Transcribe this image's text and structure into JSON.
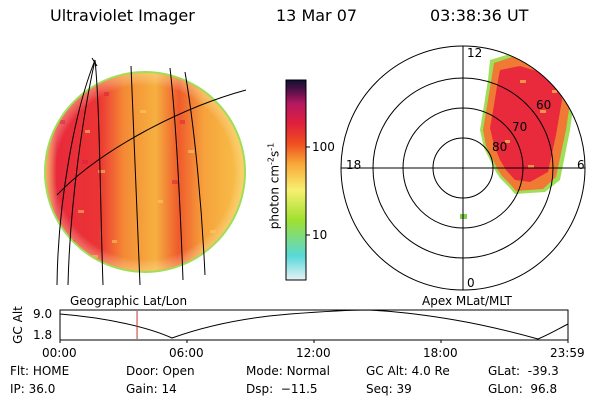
{
  "header": {
    "instrument": "Ultraviolet Imager",
    "date": "13 Mar 07",
    "time": "03:38:36 UT"
  },
  "colors": {
    "disk_base": "#f6b040",
    "disk_edge": "#9ede58",
    "aurora_high": "#e8243a",
    "aurora_mid": "#f06a2c",
    "aurora_low": "#fbd36c",
    "overlay": "#000000",
    "time_marker": "#c0392b"
  },
  "left_panel": {
    "label": "Geographic Lat/Lon"
  },
  "colorbar": {
    "unit_main": "photon cm",
    "unit_sup1": "-2",
    "unit_s": "s",
    "unit_sup2": "-1",
    "ticks": [
      {
        "label": "100",
        "value": 100
      },
      {
        "label": "10",
        "value": 10
      }
    ],
    "stops": [
      "#e8f2f6",
      "#58d8d8",
      "#a0e030",
      "#f8f070",
      "#f8a838",
      "#f05020",
      "#e0203c",
      "#b81860",
      "#501048",
      "#101030"
    ]
  },
  "right_panel": {
    "label": "Apex MLat/MLT",
    "mlt_labels": {
      "top": "12",
      "left": "18",
      "right": "6",
      "bottom": "0"
    },
    "lat_labels": [
      "60",
      "70",
      "80"
    ]
  },
  "orbit": {
    "axis_label": "GC Alt",
    "y_ticks": [
      "9.0",
      "1.8"
    ],
    "x_ticks": [
      "00:00",
      "06:00",
      "12:00",
      "18:00",
      "23:59"
    ],
    "marker_hours": 3.64
  },
  "status": [
    [
      {
        "key": "Flt:",
        "val": "HOME"
      },
      {
        "key": "Door:",
        "val": "Open"
      },
      {
        "key": "Mode:",
        "val": "Normal"
      },
      {
        "key": "GC Alt:",
        "val": "4.0 Re"
      },
      {
        "key": "GLat:",
        "val": "-39.3"
      }
    ],
    [
      {
        "key": "IP:",
        "val": "36.0"
      },
      {
        "key": "Gain:",
        "val": "14"
      },
      {
        "key": "Dsp:",
        "val": "−11.5"
      },
      {
        "key": "Seq:",
        "val": "39"
      },
      {
        "key": "GLon:",
        "val": "96.8"
      }
    ]
  ]
}
